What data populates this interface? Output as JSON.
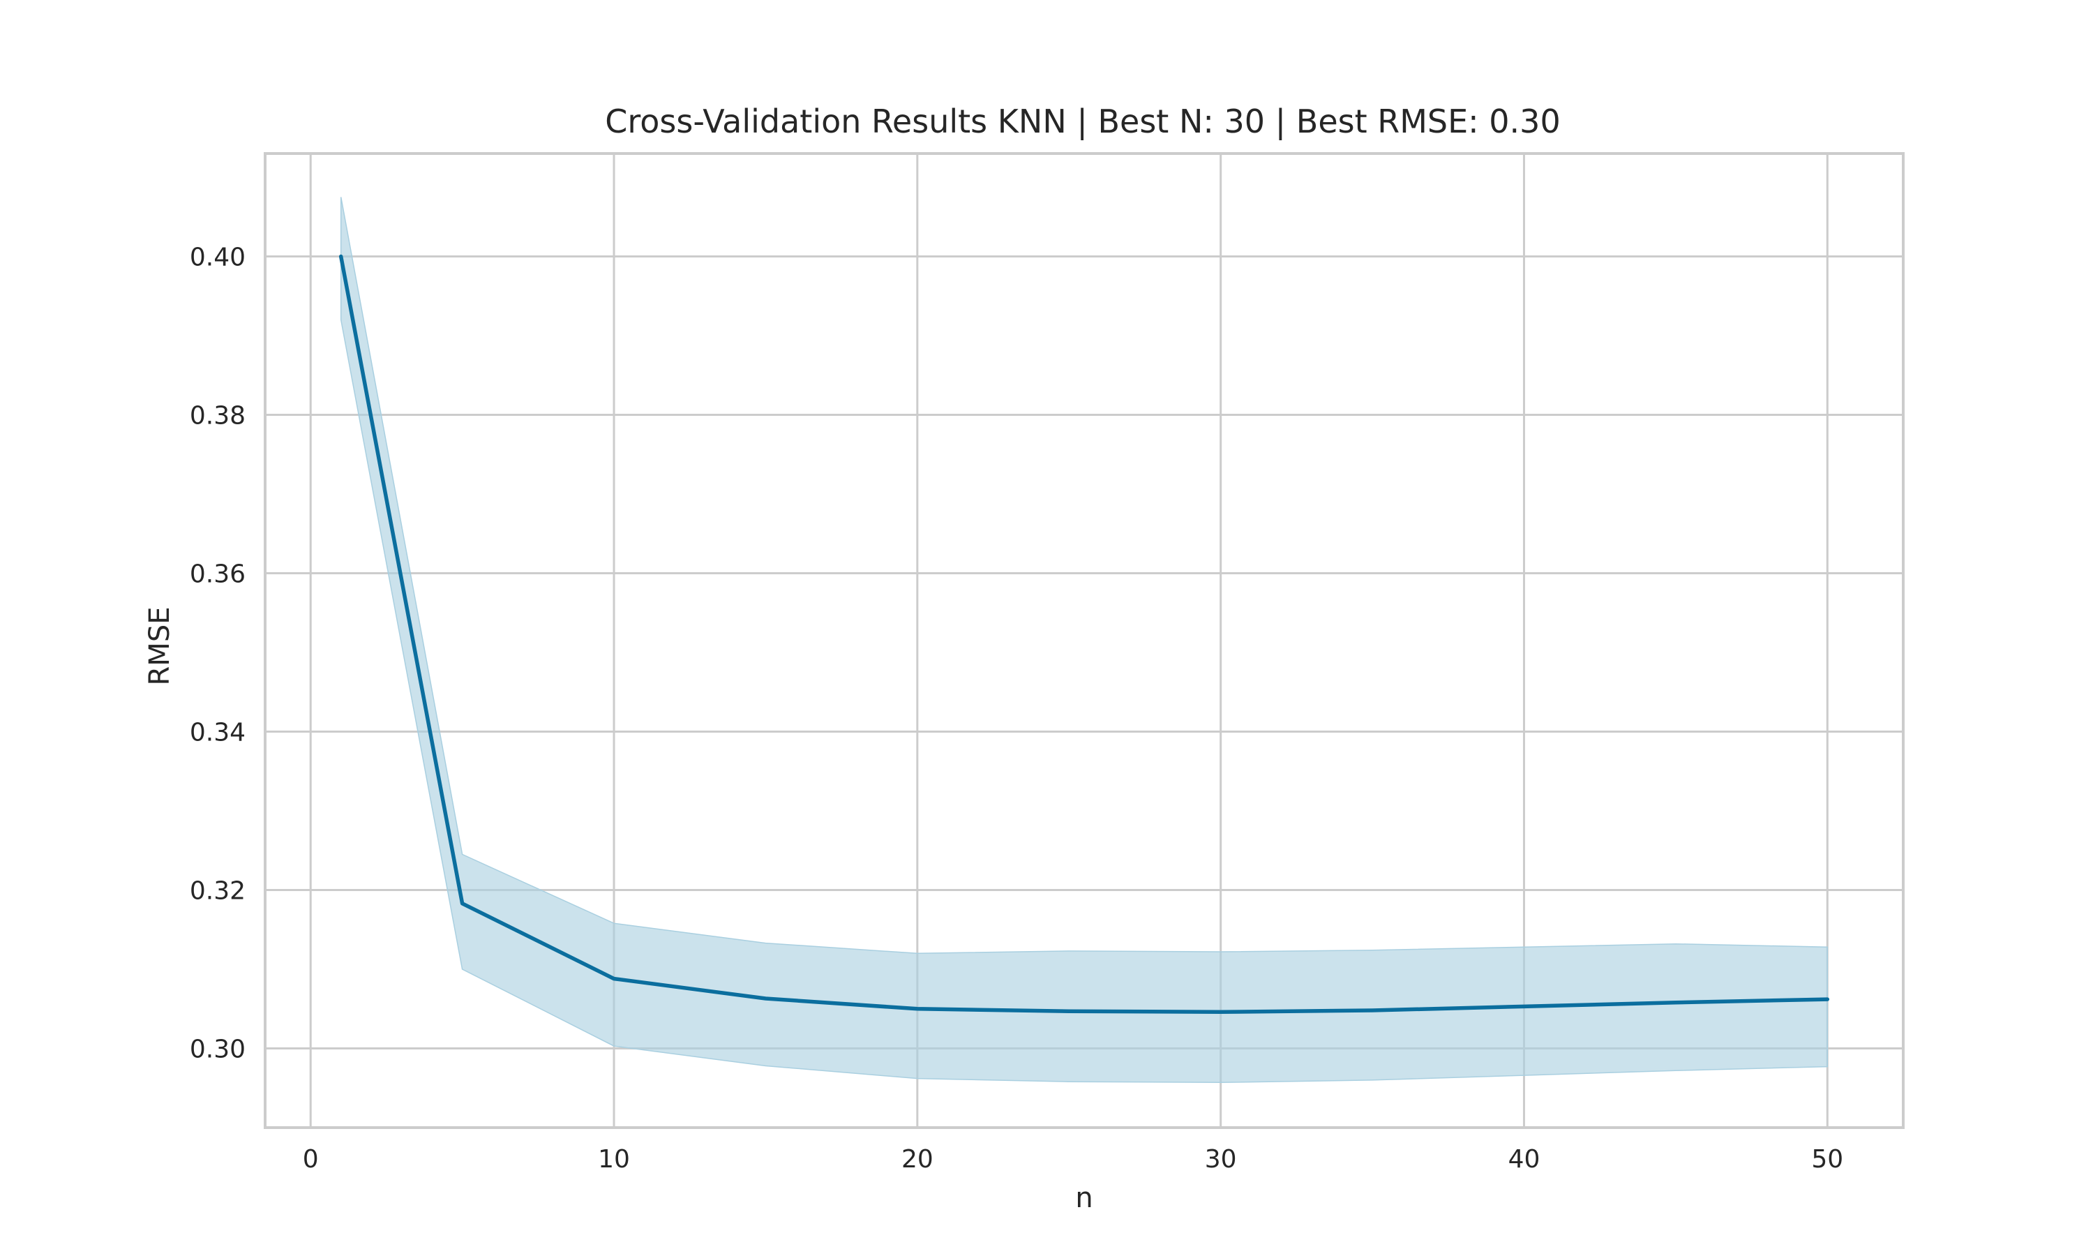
{
  "chart_data": {
    "type": "line",
    "title": "Cross-Validation Results KNN | Best N: 30 | Best RMSE: 0.30",
    "xlabel": "n",
    "ylabel": "RMSE",
    "xlim": [
      -1.5,
      52.5
    ],
    "ylim": [
      0.29,
      0.413
    ],
    "x_ticks": [
      0,
      10,
      20,
      30,
      40,
      50
    ],
    "y_ticks": [
      0.3,
      0.32,
      0.34,
      0.36,
      0.38,
      0.4
    ],
    "x_tick_labels": [
      "0",
      "10",
      "20",
      "30",
      "40",
      "50"
    ],
    "y_tick_labels": [
      "0.30",
      "0.32",
      "0.34",
      "0.36",
      "0.38",
      "0.40"
    ],
    "grid": true,
    "legend": "none",
    "series": [
      {
        "x": [
          1,
          5,
          10,
          15,
          20,
          25,
          30,
          35,
          40,
          45,
          50
        ],
        "y": [
          0.4,
          0.3183,
          0.3088,
          0.3063,
          0.305,
          0.3047,
          0.3046,
          0.3048,
          0.3053,
          0.3058,
          0.3062
        ],
        "lower": [
          0.392,
          0.31,
          0.3003,
          0.2978,
          0.2962,
          0.2958,
          0.2957,
          0.296,
          0.2966,
          0.2972,
          0.2977
        ],
        "upper": [
          0.4075,
          0.3245,
          0.3158,
          0.3133,
          0.312,
          0.3123,
          0.3122,
          0.3124,
          0.3128,
          0.3132,
          0.3128
        ]
      }
    ],
    "colors": {
      "line": "#0b6e9e",
      "band": "#a9cfe0",
      "grid": "#cccccc",
      "frame": "#cccccc",
      "text": "#262626",
      "background": "#ffffff"
    }
  }
}
